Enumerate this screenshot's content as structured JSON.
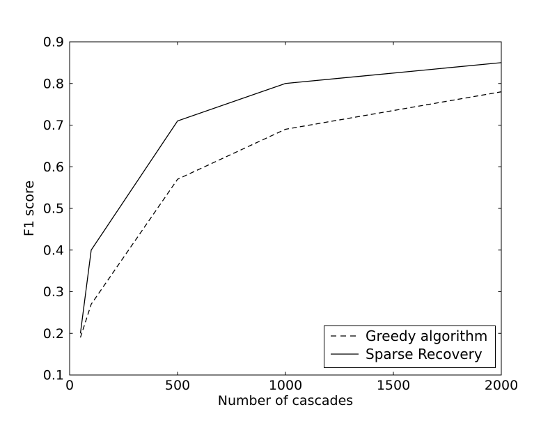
{
  "figure": {
    "background": "#ffffff",
    "foreground": "#000000"
  },
  "chart_data": {
    "type": "line",
    "title": "",
    "xlabel": "Number of cascades",
    "ylabel": "F1 score",
    "xlim": [
      0,
      2000
    ],
    "ylim": [
      0.1,
      0.9
    ],
    "xticks": [
      0,
      500,
      1000,
      1500,
      2000
    ],
    "xtick_labels": [
      "0",
      "500",
      "1000",
      "1500",
      "2000"
    ],
    "yticks": [
      0.1,
      0.2,
      0.3,
      0.4,
      0.5,
      0.6,
      0.7,
      0.8,
      0.9
    ],
    "ytick_labels": [
      "0.1",
      "0.2",
      "0.3",
      "0.4",
      "0.5",
      "0.6",
      "0.7",
      "0.8",
      "0.9"
    ],
    "grid": false,
    "line_color": "#000000",
    "legend": {
      "position": "lower-right",
      "frame": true,
      "entries": [
        {
          "label": "Greedy algorithm",
          "line_style": "dashed"
        },
        {
          "label": "Sparse Recovery",
          "line_style": "solid"
        }
      ]
    },
    "series": [
      {
        "name": "Greedy algorithm",
        "line_style": "dashed",
        "color": "#000000",
        "x": [
          50,
          100,
          500,
          1000,
          2000
        ],
        "y": [
          0.19,
          0.27,
          0.57,
          0.69,
          0.78
        ]
      },
      {
        "name": "Sparse Recovery",
        "line_style": "solid",
        "color": "#000000",
        "x": [
          50,
          100,
          500,
          1000,
          2000
        ],
        "y": [
          0.2,
          0.4,
          0.71,
          0.8,
          0.85
        ]
      }
    ]
  }
}
